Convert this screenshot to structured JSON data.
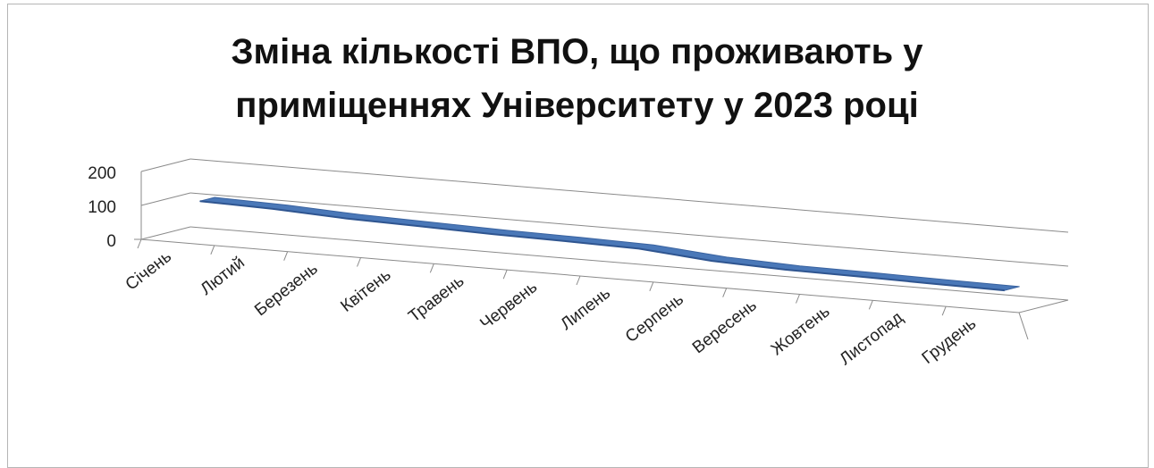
{
  "chart_data": {
    "type": "line",
    "title_line1": "Зміна кількості ВПО, що проживають у",
    "title_line2": "приміщеннях Університету у 2023 році",
    "categories": [
      "Січень",
      "Лютий",
      "Березень",
      "Квітень",
      "Травень",
      "Червень",
      "Липень",
      "Серпень",
      "Вересень",
      "Жовтень",
      "Листопад",
      "Грудень"
    ],
    "series": [
      {
        "values": [
          105,
          100,
          90,
          85,
          80,
          77,
          73,
          55,
          47,
          45,
          42,
          40
        ]
      }
    ],
    "yticks": [
      "0",
      "100",
      "200"
    ],
    "ylim": [
      0,
      200
    ],
    "grid": true,
    "legend": "none",
    "view": "3d",
    "series_color": "#4a78b8"
  }
}
